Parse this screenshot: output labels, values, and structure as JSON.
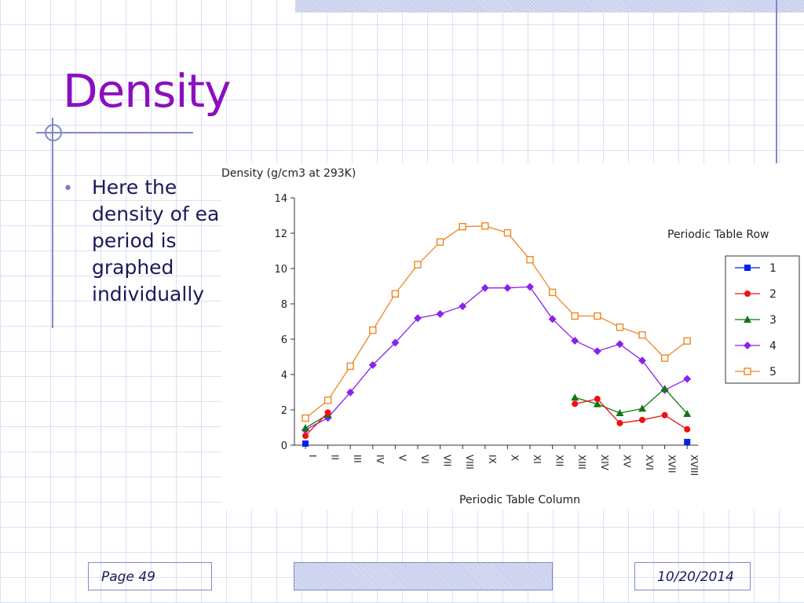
{
  "slide": {
    "title": "Density",
    "bullet": "Here the density of each period is graphed individually",
    "footer_page": "Page 49",
    "footer_date": "10/20/2014"
  },
  "chart_data": {
    "type": "line",
    "title": "Density (g/cm3 at 293K)",
    "xlabel": "Periodic Table Column",
    "ylabel": "Density (g/cm3 at 293K)",
    "ylim": [
      0,
      14
    ],
    "yticks": [
      0,
      2,
      4,
      6,
      8,
      10,
      12,
      14
    ],
    "grid": false,
    "legend": {
      "title": "Periodic Table Row",
      "position": "right"
    },
    "categories": [
      "I",
      "II",
      "III",
      "IV",
      "V",
      "VI",
      "VII",
      "VIII",
      "IX",
      "X",
      "XI",
      "XII",
      "XIII",
      "XIV",
      "XV",
      "XVI",
      "XVII",
      "XVIII"
    ],
    "series": [
      {
        "name": "1",
        "color": "#0022ee",
        "marker": "square",
        "values": [
          0.09,
          null,
          null,
          null,
          null,
          null,
          null,
          null,
          null,
          null,
          null,
          null,
          null,
          null,
          null,
          null,
          null,
          0.18
        ]
      },
      {
        "name": "2",
        "color": "#ee1111",
        "marker": "circle",
        "values": [
          0.53,
          1.85,
          null,
          null,
          null,
          null,
          null,
          null,
          null,
          null,
          null,
          null,
          2.34,
          2.62,
          1.25,
          1.43,
          1.7,
          0.9
        ]
      },
      {
        "name": "3",
        "color": "#117711",
        "marker": "triangle",
        "values": [
          0.97,
          1.74,
          null,
          null,
          null,
          null,
          null,
          null,
          null,
          null,
          null,
          null,
          2.7,
          2.33,
          1.82,
          2.07,
          3.2,
          1.78
        ]
      },
      {
        "name": "4",
        "color": "#8a22ee",
        "marker": "diamond",
        "values": [
          0.86,
          1.55,
          2.99,
          4.54,
          5.8,
          7.19,
          7.43,
          7.86,
          8.9,
          8.9,
          8.96,
          7.14,
          5.91,
          5.32,
          5.72,
          4.79,
          3.12,
          3.75
        ]
      },
      {
        "name": "5",
        "color": "#ee8822",
        "marker": "open-square",
        "values": [
          1.53,
          2.54,
          4.47,
          6.51,
          8.57,
          10.22,
          11.5,
          12.37,
          12.41,
          12.02,
          10.5,
          8.65,
          7.31,
          7.31,
          6.68,
          6.24,
          4.93,
          5.9
        ]
      }
    ]
  }
}
